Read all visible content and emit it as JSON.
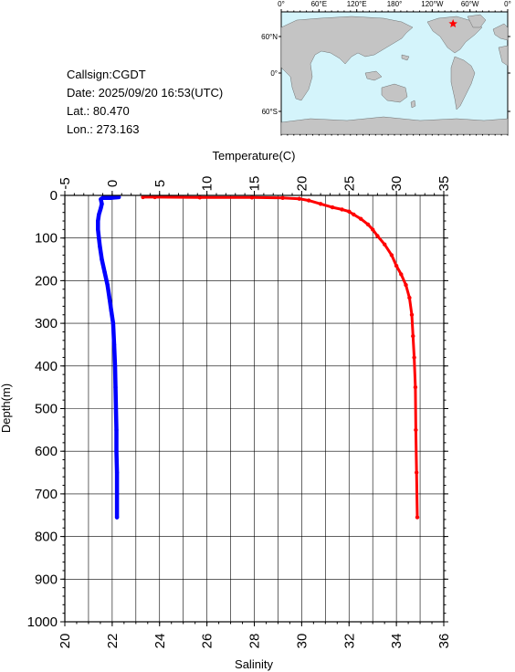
{
  "station": {
    "callsign": "Callsign:CGDT",
    "date": "Date:  2025/09/20 16:53(UTC)",
    "lat": "Lat.:  80.470",
    "lon": "Lon.:  273.163"
  },
  "map": {
    "top_labels": [
      "0°",
      "60°E",
      "120°E",
      "180°",
      "120°W",
      "60°W",
      "0°"
    ],
    "left_labels": [
      "60°N",
      "0°",
      "60°S"
    ],
    "ocean_color": "#d4f4fb",
    "land_color": "#c4c4c4",
    "marker_color": "#ff0000",
    "marker_icon": "star-icon"
  },
  "chart_data": {
    "type": "line",
    "top_axis_label": "Temperature(C)",
    "bottom_axis_label": "Salinity",
    "left_axis_label": "Depth(m)",
    "temperature_ticks": [
      -5,
      0,
      5,
      10,
      15,
      20,
      25,
      30,
      35
    ],
    "salinity_ticks": [
      20,
      22,
      24,
      26,
      28,
      30,
      32,
      34,
      36
    ],
    "depth_ticks": [
      0,
      100,
      200,
      300,
      400,
      500,
      600,
      700,
      800,
      900,
      1000
    ],
    "temperature_range": [
      -5,
      35
    ],
    "salinity_range": [
      20,
      36
    ],
    "depth_range": [
      0,
      1000
    ],
    "depth_inverted": true,
    "grid": true,
    "series": [
      {
        "color": "#ff0000",
        "axis": "salinity",
        "points": [
          [
            23.3,
            4
          ],
          [
            23.8,
            4
          ],
          [
            25.7,
            5
          ],
          [
            27.9,
            5
          ],
          [
            29.2,
            6
          ],
          [
            29.9,
            8
          ],
          [
            30.3,
            12
          ],
          [
            30.8,
            20
          ],
          [
            31.3,
            28
          ],
          [
            31.7,
            33
          ],
          [
            32.0,
            38
          ],
          [
            32.2,
            45
          ],
          [
            32.5,
            55
          ],
          [
            32.8,
            68
          ],
          [
            33.0,
            80
          ],
          [
            33.2,
            95
          ],
          [
            33.5,
            115
          ],
          [
            33.8,
            140
          ],
          [
            34.0,
            165
          ],
          [
            34.2,
            185
          ],
          [
            34.4,
            210
          ],
          [
            34.55,
            240
          ],
          [
            34.65,
            280
          ],
          [
            34.7,
            330
          ],
          [
            34.75,
            380
          ],
          [
            34.8,
            450
          ],
          [
            34.82,
            550
          ],
          [
            34.85,
            650
          ],
          [
            34.88,
            755
          ]
        ]
      },
      {
        "color": "#0000ff",
        "axis": "temperature",
        "points": [
          [
            0.7,
            4
          ],
          [
            0.3,
            5
          ],
          [
            -0.2,
            6
          ],
          [
            -1.0,
            6
          ],
          [
            -1.2,
            9
          ],
          [
            -1.1,
            20
          ],
          [
            -1.2,
            30
          ],
          [
            -1.4,
            45
          ],
          [
            -1.5,
            60
          ],
          [
            -1.5,
            80
          ],
          [
            -1.4,
            100
          ],
          [
            -1.3,
            120
          ],
          [
            -1.1,
            150
          ],
          [
            -0.8,
            180
          ],
          [
            -0.5,
            210
          ],
          [
            -0.3,
            240
          ],
          [
            -0.1,
            270
          ],
          [
            0.1,
            300
          ],
          [
            0.2,
            350
          ],
          [
            0.3,
            400
          ],
          [
            0.35,
            450
          ],
          [
            0.4,
            500
          ],
          [
            0.45,
            550
          ],
          [
            0.45,
            600
          ],
          [
            0.5,
            650
          ],
          [
            0.5,
            700
          ],
          [
            0.5,
            755
          ]
        ]
      }
    ]
  }
}
